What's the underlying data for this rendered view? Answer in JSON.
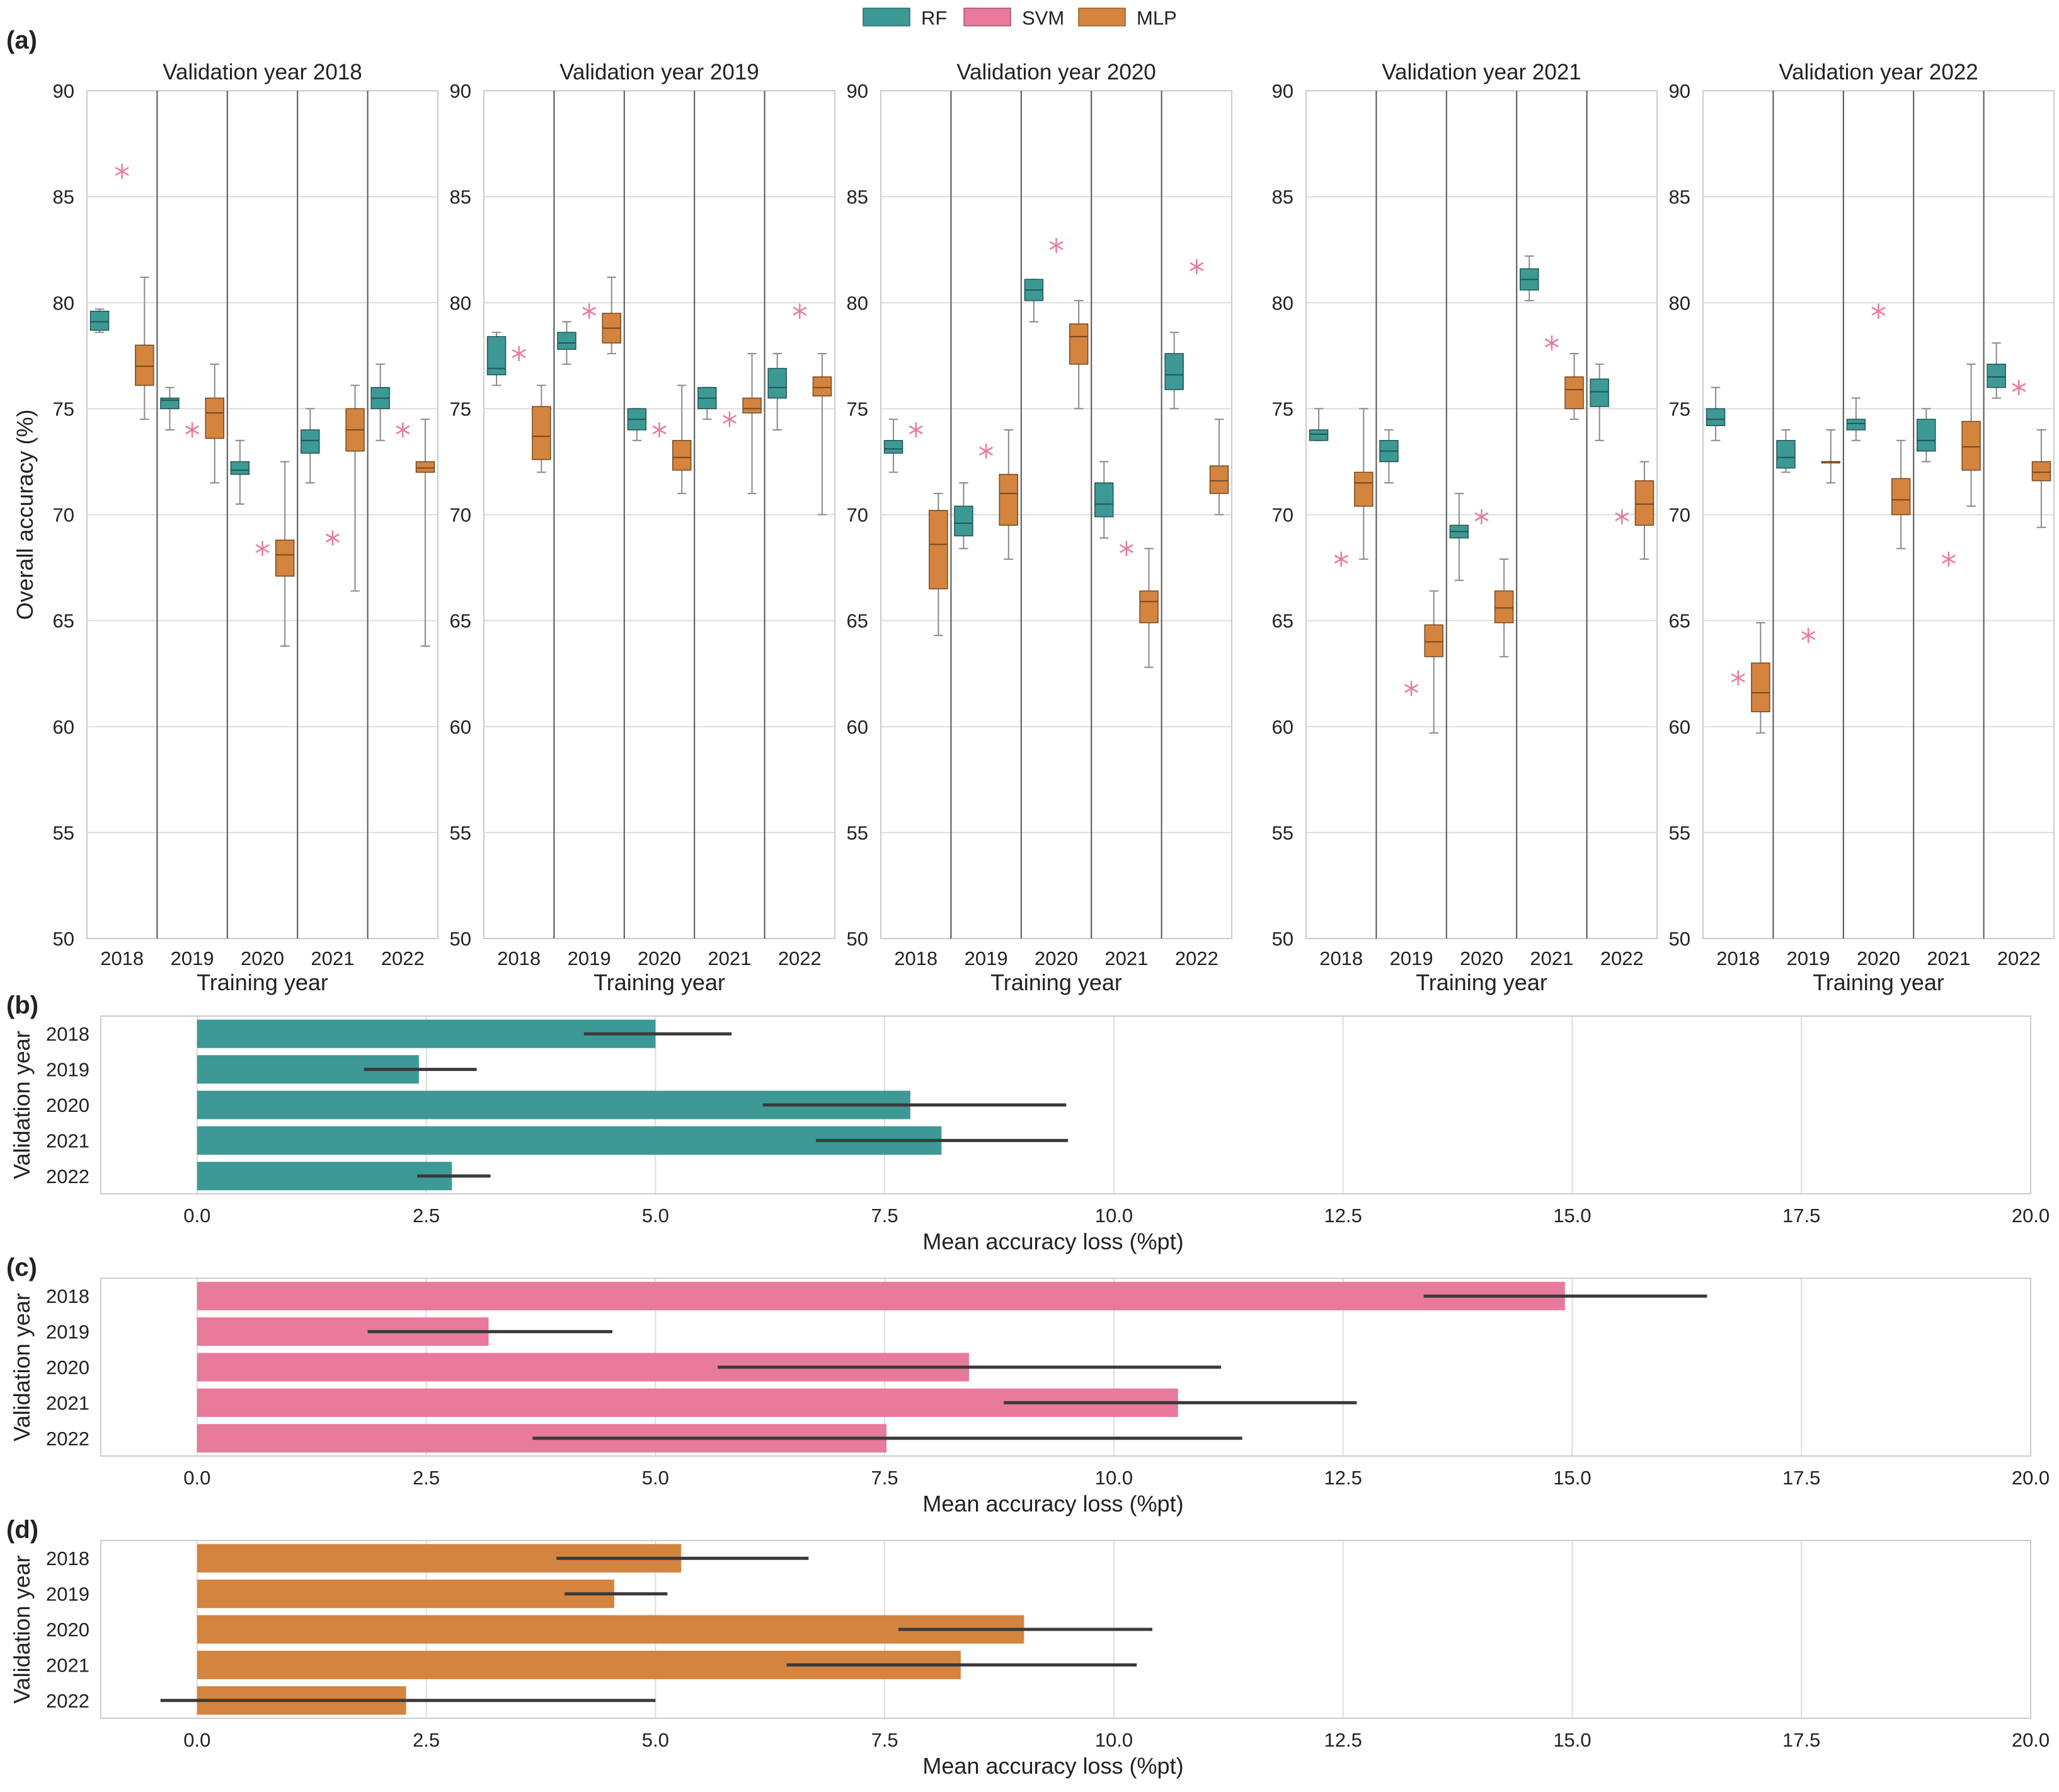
{
  "legend": [
    {
      "name": "RF",
      "color": "#3d9996"
    },
    {
      "name": "SVM",
      "color": "#e87a9b"
    },
    {
      "name": "MLP",
      "color": "#d4843e"
    }
  ],
  "colors": {
    "RF": "#3d9996",
    "SVM": "#e87a9b",
    "MLP": "#d4843e",
    "grid": "#dddddd",
    "frame": "#cccccc",
    "divider": "#555555",
    "errbar": "#3a3a3a"
  },
  "panel_labels": {
    "a": "(a)",
    "b": "(b)",
    "c": "(c)",
    "d": "(d)"
  },
  "chart_data": [
    {
      "type": "box",
      "panel": "(a)",
      "ylabel": "Overall accuracy (%)",
      "xlabel": "Training year",
      "ylim": [
        50,
        90
      ],
      "yticks": [
        50,
        55,
        60,
        65,
        70,
        75,
        80,
        85,
        90
      ],
      "categories": [
        "2018",
        "2019",
        "2020",
        "2021",
        "2022"
      ],
      "subplots": [
        {
          "title": "Validation year 2018",
          "groups": [
            {
              "rf": [
                78.6,
                78.7,
                79.1,
                79.6,
                79.7
              ],
              "svm": 86.2,
              "mlp": [
                74.5,
                76.1,
                77.0,
                78.0,
                81.2
              ]
            },
            {
              "rf": [
                74.0,
                75.0,
                75.4,
                75.5,
                76.0
              ],
              "svm": 74.0,
              "mlp": [
                71.5,
                73.6,
                74.8,
                75.5,
                77.1
              ]
            },
            {
              "rf": [
                70.5,
                71.9,
                72.1,
                72.5,
                73.5
              ],
              "svm": 68.4,
              "mlp": [
                63.8,
                67.1,
                68.1,
                68.8,
                72.5
              ]
            },
            {
              "rf": [
                71.5,
                72.9,
                73.5,
                74.0,
                75.0
              ],
              "svm": 68.9,
              "mlp": [
                66.4,
                73.0,
                74.0,
                75.0,
                76.1
              ]
            },
            {
              "rf": [
                73.5,
                75.0,
                75.5,
                76.0,
                77.1
              ],
              "svm": 74.0,
              "mlp": [
                63.8,
                72.0,
                72.2,
                72.5,
                74.5
              ]
            }
          ]
        },
        {
          "title": "Validation year 2019",
          "groups": [
            {
              "rf": [
                76.1,
                76.6,
                76.9,
                78.4,
                78.6
              ],
              "svm": 77.6,
              "mlp": [
                72.0,
                72.6,
                73.7,
                75.1,
                76.1
              ]
            },
            {
              "rf": [
                77.1,
                77.8,
                78.1,
                78.6,
                79.1
              ],
              "svm": 79.6,
              "mlp": [
                77.6,
                78.1,
                78.8,
                79.5,
                81.2
              ]
            },
            {
              "rf": [
                73.5,
                74.0,
                74.5,
                75.0,
                75.0
              ],
              "svm": 74.0,
              "mlp": [
                71.0,
                72.1,
                72.7,
                73.5,
                76.1
              ]
            },
            {
              "rf": [
                74.5,
                75.0,
                75.5,
                76.0,
                76.0
              ],
              "svm": 74.5,
              "mlp": [
                71.0,
                74.8,
                75.0,
                75.5,
                77.6
              ]
            },
            {
              "rf": [
                74.0,
                75.5,
                76.0,
                76.9,
                77.6
              ],
              "svm": 79.6,
              "mlp": [
                70.0,
                75.6,
                76.0,
                76.5,
                77.6
              ]
            }
          ]
        },
        {
          "title": "Validation year 2020",
          "groups": [
            {
              "rf": [
                72.0,
                72.9,
                73.1,
                73.5,
                74.5
              ],
              "svm": 74.0,
              "mlp": [
                64.3,
                66.5,
                68.6,
                70.2,
                71.0
              ]
            },
            {
              "rf": [
                68.4,
                69.0,
                69.6,
                70.4,
                71.5
              ],
              "svm": 73.0,
              "mlp": [
                67.9,
                69.5,
                71.0,
                71.9,
                74.0
              ]
            },
            {
              "rf": [
                79.1,
                80.1,
                80.6,
                81.1,
                81.1
              ],
              "svm": 82.7,
              "mlp": [
                75.0,
                77.1,
                78.4,
                79.0,
                80.1
              ]
            },
            {
              "rf": [
                68.9,
                69.9,
                70.5,
                71.5,
                72.5
              ],
              "svm": 68.4,
              "mlp": [
                62.8,
                64.9,
                65.9,
                66.4,
                68.4
              ]
            },
            {
              "rf": [
                75.0,
                75.9,
                76.6,
                77.6,
                78.6
              ],
              "svm": 81.7,
              "mlp": [
                70.0,
                71.0,
                71.6,
                72.3,
                74.5
              ]
            }
          ]
        },
        {
          "title": "Validation year 2021",
          "groups": [
            {
              "rf": [
                73.5,
                73.5,
                73.8,
                74.0,
                75.0
              ],
              "svm": 67.9,
              "mlp": [
                67.9,
                70.4,
                71.5,
                72.0,
                75.0
              ]
            },
            {
              "rf": [
                71.5,
                72.5,
                73.0,
                73.5,
                74.0
              ],
              "svm": 61.8,
              "mlp": [
                59.7,
                63.3,
                64.0,
                64.8,
                66.4
              ]
            },
            {
              "rf": [
                66.9,
                68.9,
                69.2,
                69.5,
                71.0
              ],
              "svm": 69.9,
              "mlp": [
                63.3,
                64.9,
                65.6,
                66.4,
                67.9
              ]
            },
            {
              "rf": [
                80.1,
                80.6,
                81.1,
                81.6,
                82.2
              ],
              "svm": 78.1,
              "mlp": [
                74.5,
                75.0,
                75.9,
                76.5,
                77.6
              ]
            },
            {
              "rf": [
                73.5,
                75.1,
                75.8,
                76.4,
                77.1
              ],
              "svm": 69.9,
              "mlp": [
                67.9,
                69.5,
                70.5,
                71.6,
                72.5
              ]
            }
          ]
        },
        {
          "title": "Validation year 2022",
          "groups": [
            {
              "rf": [
                73.5,
                74.2,
                74.5,
                75.0,
                76.0
              ],
              "svm": 62.3,
              "mlp": [
                59.7,
                60.7,
                61.6,
                63.0,
                64.9
              ]
            },
            {
              "rf": [
                72.0,
                72.2,
                72.7,
                73.5,
                74.0
              ],
              "svm": 64.3,
              "mlp": [
                71.5,
                72.5,
                72.5,
                72.5,
                74.0
              ]
            },
            {
              "rf": [
                73.5,
                74.0,
                74.3,
                74.5,
                75.5
              ],
              "svm": 79.6,
              "mlp": [
                68.4,
                70.0,
                70.7,
                71.7,
                73.5
              ]
            },
            {
              "rf": [
                72.5,
                73.0,
                73.5,
                74.5,
                75.0
              ],
              "svm": 67.9,
              "mlp": [
                70.4,
                72.1,
                73.2,
                74.4,
                77.1
              ]
            },
            {
              "rf": [
                75.5,
                76.0,
                76.5,
                77.1,
                78.1
              ],
              "svm": 76.0,
              "mlp": [
                69.4,
                71.6,
                72.0,
                72.5,
                74.0
              ]
            }
          ]
        }
      ]
    },
    {
      "type": "bar",
      "orientation": "horizontal",
      "panel": "(b)",
      "series": "RF",
      "categories": [
        "2018",
        "2019",
        "2020",
        "2021",
        "2022"
      ],
      "values": [
        5.0,
        2.42,
        7.78,
        8.12,
        2.78
      ],
      "err_low": [
        4.22,
        1.82,
        6.17,
        6.75,
        2.4
      ],
      "err_high": [
        5.83,
        3.05,
        9.48,
        9.5,
        3.2
      ],
      "xlabel": "Mean accuracy loss (%pt)",
      "ylabel": "Validation year",
      "xlim": [
        -1.05,
        20.0
      ],
      "xticks": [
        0.0,
        2.5,
        5.0,
        7.5,
        10.0,
        12.5,
        15.0,
        17.5,
        20.0
      ]
    },
    {
      "type": "bar",
      "orientation": "horizontal",
      "panel": "(c)",
      "series": "SVM",
      "categories": [
        "2018",
        "2019",
        "2020",
        "2021",
        "2022"
      ],
      "values": [
        14.92,
        3.18,
        8.42,
        10.7,
        7.52
      ],
      "err_low": [
        13.38,
        1.86,
        5.68,
        8.8,
        3.66
      ],
      "err_high": [
        16.47,
        4.53,
        11.17,
        12.65,
        11.4
      ],
      "xlabel": "Mean accuracy loss (%pt)",
      "ylabel": "Validation year",
      "xlim": [
        -1.05,
        20.0
      ],
      "xticks": [
        0.0,
        2.5,
        5.0,
        7.5,
        10.0,
        12.5,
        15.0,
        17.5,
        20.0
      ]
    },
    {
      "type": "bar",
      "orientation": "horizontal",
      "panel": "(d)",
      "series": "MLP",
      "categories": [
        "2018",
        "2019",
        "2020",
        "2021",
        "2022"
      ],
      "values": [
        5.28,
        4.55,
        9.02,
        8.33,
        2.28
      ],
      "err_low": [
        3.92,
        4.01,
        7.65,
        6.43,
        -0.4
      ],
      "err_high": [
        6.67,
        5.13,
        10.42,
        10.25,
        5.0
      ],
      "xlabel": "Mean accuracy loss (%pt)",
      "ylabel": "Validation year",
      "xlim": [
        -1.05,
        20.0
      ],
      "xticks": [
        0.0,
        2.5,
        5.0,
        7.5,
        10.0,
        12.5,
        15.0,
        17.5,
        20.0
      ]
    }
  ]
}
